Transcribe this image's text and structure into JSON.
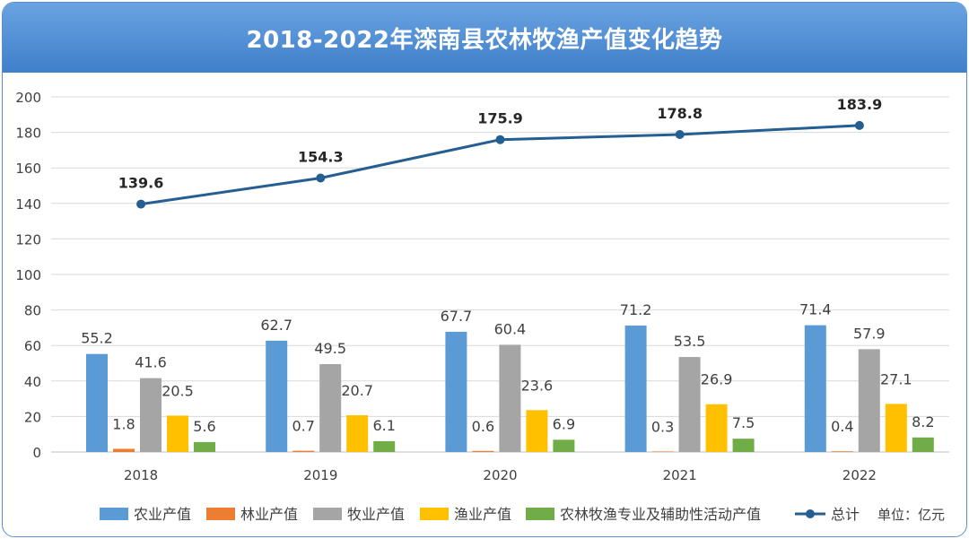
{
  "chart_data": {
    "type": "bar",
    "title": "2018-2022年滦南县农林牧渔产值变化趋势",
    "categories": [
      "2018",
      "2019",
      "2020",
      "2021",
      "2022"
    ],
    "ylim": [
      0,
      200
    ],
    "yticks": [
      0,
      20,
      40,
      60,
      80,
      100,
      120,
      140,
      160,
      180,
      200
    ],
    "grid": true,
    "legend_position": "bottom",
    "unit_label": "单位：亿元",
    "series": [
      {
        "name": "农业产值",
        "kind": "bar",
        "color": "#5b9bd5",
        "values": [
          55.2,
          62.7,
          67.7,
          71.2,
          71.4
        ]
      },
      {
        "name": "林业产值",
        "kind": "bar",
        "color": "#ed7d31",
        "values": [
          1.8,
          0.7,
          0.6,
          0.3,
          0.4
        ]
      },
      {
        "name": "牧业产值",
        "kind": "bar",
        "color": "#a5a5a5",
        "values": [
          41.6,
          49.5,
          60.4,
          53.5,
          57.9
        ]
      },
      {
        "name": "渔业产值",
        "kind": "bar",
        "color": "#ffc000",
        "values": [
          20.5,
          20.7,
          23.6,
          26.9,
          27.1
        ]
      },
      {
        "name": "农林牧渔专业及辅助性活动产值",
        "kind": "bar",
        "color": "#70ad47",
        "values": [
          5.6,
          6.1,
          6.9,
          7.5,
          8.2
        ]
      },
      {
        "name": "总计",
        "kind": "line",
        "color": "#255e91",
        "values": [
          139.6,
          154.3,
          175.9,
          178.8,
          183.9
        ]
      }
    ]
  }
}
